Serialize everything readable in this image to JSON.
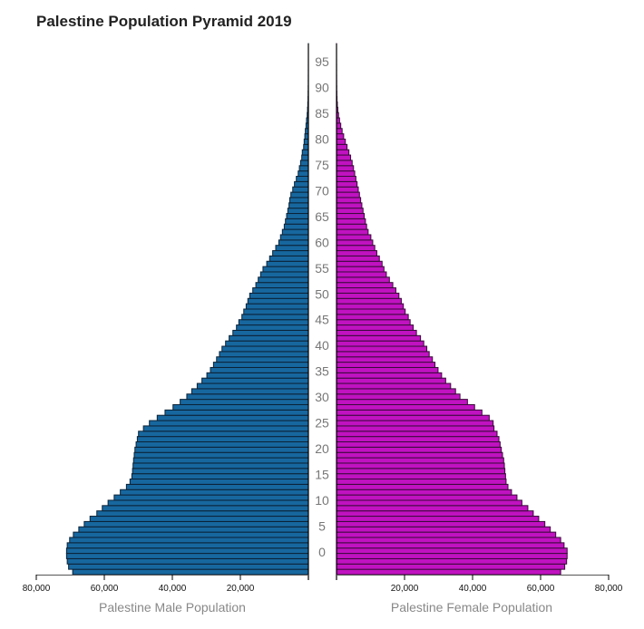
{
  "title": "Palestine Population Pyramid 2019",
  "colors": {
    "male_fill": "#17679f",
    "male_stroke": "#0b2236",
    "female_fill": "#c012c0",
    "female_stroke": "#3a0a3a",
    "axis": "#000000"
  },
  "chart_data": {
    "type": "bar",
    "orientation": "horizontal-pyramid",
    "title": "Palestine Population Pyramid 2019",
    "age_labels": [
      0,
      5,
      10,
      15,
      20,
      25,
      30,
      35,
      40,
      45,
      50,
      55,
      60,
      65,
      70,
      75,
      80,
      85,
      90,
      95
    ],
    "left_axis": {
      "label": "Palestine Male Population",
      "ticks": [
        "80,000",
        "60,000",
        "40,000",
        "20,000"
      ],
      "tick_values": [
        80000,
        60000,
        40000,
        20000
      ],
      "range": [
        0,
        80000
      ]
    },
    "right_axis": {
      "label": "Palestine Female Population",
      "ticks": [
        "20,000",
        "40,000",
        "60,000",
        "80,000"
      ],
      "tick_values": [
        20000,
        40000,
        60000,
        80000
      ],
      "range": [
        0,
        80000
      ]
    },
    "ages": "0..99 (one bar per single year of age, bottom to top)",
    "series": [
      {
        "name": "Palestine Male Population",
        "side": "left",
        "values": [
          69300,
          70500,
          70900,
          71100,
          71100,
          70900,
          70200,
          69100,
          67500,
          65900,
          64200,
          62200,
          60600,
          58900,
          57100,
          55300,
          53500,
          52450,
          51900,
          51700,
          51550,
          51400,
          51200,
          51000,
          50650,
          50300,
          49950,
          48500,
          46750,
          44450,
          42150,
          39800,
          37700,
          35750,
          34300,
          32700,
          31300,
          29850,
          28800,
          27900,
          27000,
          26150,
          25400,
          24350,
          23300,
          22200,
          21150,
          20450,
          19550,
          19000,
          18300,
          17800,
          17250,
          16350,
          15450,
          14750,
          14050,
          13350,
          12250,
          11400,
          10500,
          9600,
          8700,
          8200,
          7650,
          7100,
          6750,
          6400,
          6050,
          5700,
          5500,
          5150,
          4600,
          4100,
          3550,
          3000,
          2650,
          2300,
          1950,
          1800,
          1400,
          1250,
          1050,
          900,
          700,
          550,
          350,
          250,
          180,
          120,
          80,
          50,
          30,
          20,
          12,
          8,
          5,
          3,
          2,
          1
        ]
      },
      {
        "name": "Palestine Female Population",
        "side": "right",
        "values": [
          65900,
          67100,
          67650,
          67800,
          67800,
          66900,
          65900,
          64450,
          62850,
          61250,
          59450,
          57850,
          56250,
          54500,
          53050,
          51450,
          50400,
          49850,
          49700,
          49500,
          49350,
          49150,
          48800,
          48450,
          48100,
          47750,
          47200,
          46300,
          46050,
          44900,
          42750,
          40600,
          38500,
          36300,
          35000,
          33550,
          32100,
          30900,
          29850,
          28950,
          28200,
          27250,
          26550,
          25650,
          24700,
          23500,
          22550,
          21650,
          21100,
          20200,
          19650,
          19050,
          18350,
          17450,
          16550,
          15550,
          14650,
          13950,
          13400,
          12600,
          11850,
          11250,
          10650,
          10100,
          9300,
          8850,
          8500,
          8150,
          7800,
          7450,
          7100,
          6750,
          6400,
          6050,
          5700,
          5350,
          5000,
          4600,
          4150,
          3650,
          3100,
          2600,
          2100,
          1650,
          1250,
          900,
          600,
          400,
          250,
          150,
          100,
          60,
          40,
          25,
          15,
          10,
          6,
          4,
          2,
          1
        ]
      }
    ]
  }
}
